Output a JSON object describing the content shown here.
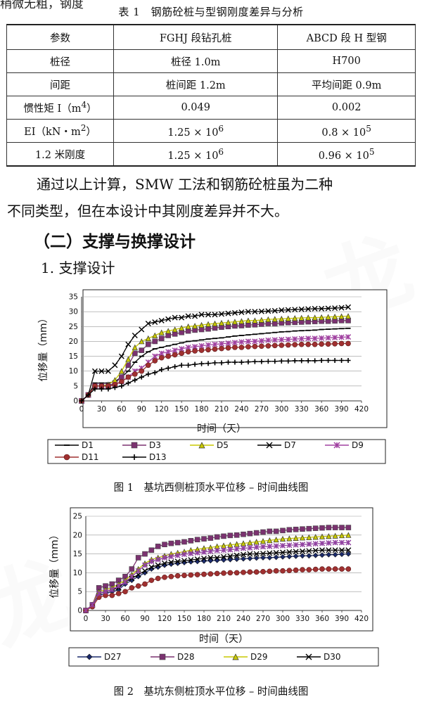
{
  "page": {
    "top_cut_text": "稍微无粗，钢度",
    "table_caption": "表 1　钢筋砼桩与型钢刚度差异与分析",
    "table": {
      "header": [
        "参数",
        "FGHJ 段钻孔桩",
        "ABCD 段 H 型钢"
      ],
      "rows": [
        {
          "label": "桩径",
          "fghj": "桩径 1.0m",
          "abcd": "H700"
        },
        {
          "label": "间距",
          "fghj": "桩间距 1.2m",
          "abcd": "平均间距 0.9m"
        },
        {
          "label": "惯性矩 I（m",
          "label_sup": "4",
          "label_tail": "）",
          "fghj": "0.049",
          "abcd": "0.002"
        },
        {
          "label": "EI（kN・m",
          "label_sup": "2",
          "label_tail": "）",
          "fghj": "1.25 × 10",
          "fghj_sup": "6",
          "abcd": "0.8 × 10",
          "abcd_sup": "5"
        },
        {
          "label": "1.2 米刚度",
          "fghj": "1.25 × 10",
          "fghj_sup": "6",
          "abcd": "0.96 × 10",
          "abcd_sup": "5"
        }
      ]
    },
    "paragraph_line1": "通过以上计算，SMW 工法和钢筋砼桩虽为二种",
    "paragraph_line2": "不同类型，但在本设计中其刚度差异并不大。",
    "heading2": "（二）支撑与换撑设计",
    "heading3": "1. 支撑设计",
    "fig1_caption": "图 1　基坑西侧桩顶水平位移 – 时间曲线图",
    "fig2_caption": "图 2　基坑东侧桩顶水平位移 – 时间曲线图"
  },
  "chart_data": [
    {
      "type": "line",
      "xlabel": "时间（天）",
      "ylabel": "位移量（mm）",
      "xlim": [
        0,
        420
      ],
      "ylim": [
        0,
        35
      ],
      "xticks": [
        0,
        30,
        60,
        90,
        120,
        150,
        180,
        210,
        240,
        270,
        300,
        330,
        360,
        390,
        420
      ],
      "yticks": [
        0,
        5,
        10,
        15,
        20,
        25,
        30,
        35
      ],
      "grid": true,
      "legend_position": "bottom",
      "x": [
        0,
        10,
        20,
        30,
        40,
        50,
        60,
        70,
        80,
        90,
        100,
        110,
        120,
        130,
        140,
        150,
        160,
        170,
        180,
        190,
        200,
        210,
        220,
        230,
        240,
        250,
        260,
        270,
        280,
        290,
        300,
        310,
        320,
        330,
        340,
        350,
        360,
        370,
        380,
        390,
        400
      ],
      "series": [
        {
          "name": "D1",
          "marker": "dash",
          "color": "#000000",
          "values": [
            0,
            2,
            6,
            6,
            6,
            6.5,
            8,
            10,
            13,
            15,
            16.5,
            17.5,
            18,
            18.5,
            19,
            19.5,
            20,
            20.2,
            20.5,
            20.8,
            21,
            21.2,
            21.5,
            21.8,
            22,
            22.2,
            22.4,
            22.6,
            22.8,
            23,
            23.2,
            23.3,
            23.5,
            23.6,
            23.7,
            23.8,
            24,
            24.1,
            24.2,
            24.3,
            24.4
          ]
        },
        {
          "name": "D3",
          "marker": "square",
          "color": "#7b3270",
          "values": [
            0,
            2,
            5,
            5,
            5,
            6,
            8,
            12,
            16,
            17,
            19,
            20,
            21,
            22,
            22.5,
            23,
            23.5,
            23.8,
            24,
            24.2,
            24.5,
            24.8,
            25,
            25.2,
            25.3,
            25.5,
            25.6,
            25.8,
            26,
            26,
            26.2,
            26.3,
            26.4,
            26.5,
            26.6,
            26.7,
            26.8,
            26.8,
            26.9,
            27,
            27
          ]
        },
        {
          "name": "D5",
          "marker": "triangle",
          "color": "#c8c800",
          "values": [
            0,
            2,
            5,
            5,
            5.5,
            7,
            10,
            14,
            18,
            20,
            21,
            22,
            23,
            23.5,
            24,
            24.5,
            25,
            25.2,
            25.5,
            25.8,
            26,
            26.2,
            26.4,
            26.6,
            26.8,
            27,
            27,
            27.2,
            27.4,
            27.5,
            27.6,
            27.7,
            27.8,
            27.9,
            28,
            28,
            28.1,
            28.2,
            28.3,
            28.4,
            28.5
          ]
        },
        {
          "name": "D7",
          "marker": "x",
          "color": "#000000",
          "values": [
            0,
            2,
            10,
            10,
            10,
            12,
            15,
            19,
            22,
            24,
            26,
            26.5,
            27,
            27.5,
            28,
            28,
            28.5,
            28.5,
            29,
            29,
            29,
            29.2,
            29.4,
            29.6,
            29.8,
            30,
            30,
            30.1,
            30.2,
            30.3,
            30.5,
            30.6,
            30.7,
            30.8,
            30.9,
            31,
            31,
            31.1,
            31.2,
            31.3,
            31.5
          ]
        },
        {
          "name": "D9",
          "marker": "star",
          "color": "#a040a0",
          "values": [
            0,
            2,
            5,
            5,
            5,
            5.5,
            6.5,
            8,
            10,
            11,
            13,
            15,
            16,
            16.5,
            17,
            17.5,
            18,
            18.2,
            18.5,
            18.8,
            19,
            19.2,
            19.4,
            19.6,
            19.8,
            20,
            20,
            20.2,
            20.4,
            20.5,
            20.6,
            20.7,
            20.8,
            20.9,
            21,
            21,
            21.1,
            21.2,
            21.3,
            21.4,
            21.5
          ]
        },
        {
          "name": "D11",
          "marker": "circle",
          "color": "#a03030",
          "values": [
            0,
            2,
            5,
            5,
            5,
            5.5,
            6.5,
            8,
            9,
            10,
            12,
            13.5,
            14.5,
            15,
            15.5,
            16,
            16.5,
            16.8,
            17,
            17.2,
            17.4,
            17.6,
            17.8,
            18,
            18,
            18.2,
            18.3,
            18.4,
            18.5,
            18.6,
            18.7,
            18.8,
            18.9,
            19,
            19,
            19,
            19.1,
            19.1,
            19.2,
            19.3,
            19.3
          ]
        },
        {
          "name": "D13",
          "marker": "plus",
          "color": "#000000",
          "values": [
            0,
            2,
            4,
            4,
            4,
            4.5,
            5,
            6,
            7,
            8,
            9,
            9.5,
            10.5,
            11,
            11.5,
            12,
            12,
            12.3,
            12.5,
            12.6,
            12.8,
            12.8,
            13,
            13,
            13,
            13.1,
            13.2,
            13.2,
            13.3,
            13.3,
            13.4,
            13.4,
            13.5,
            13.5,
            13.5,
            13.5,
            13.6,
            13.6,
            13.6,
            13.6,
            13.6
          ]
        }
      ]
    },
    {
      "type": "line",
      "xlabel": "时间（天）",
      "ylabel": "位移量（mm）",
      "xlim": [
        0,
        420
      ],
      "ylim": [
        0,
        25
      ],
      "xticks": [
        0,
        30,
        60,
        90,
        120,
        150,
        180,
        210,
        240,
        270,
        300,
        330,
        360,
        390,
        420
      ],
      "yticks": [
        0,
        5,
        10,
        15,
        20,
        25
      ],
      "grid": true,
      "legend_position": "bottom",
      "x": [
        0,
        10,
        20,
        30,
        40,
        50,
        60,
        70,
        80,
        90,
        100,
        110,
        120,
        130,
        140,
        150,
        160,
        170,
        180,
        190,
        200,
        210,
        220,
        230,
        240,
        250,
        260,
        270,
        280,
        290,
        300,
        310,
        320,
        330,
        340,
        350,
        360,
        370,
        380,
        390,
        400
      ],
      "series": [
        {
          "name": "D27",
          "marker": "diamond",
          "color": "#1a2a6c",
          "values": [
            0,
            1.5,
            4,
            4.5,
            5,
            5.5,
            7,
            8,
            9,
            10,
            11,
            11.5,
            12,
            12.3,
            12.5,
            12.7,
            12.9,
            13,
            13.1,
            13.2,
            13.3,
            13.4,
            13.5,
            13.6,
            13.7,
            13.8,
            13.9,
            14,
            14,
            14.1,
            14.2,
            14.3,
            14.4,
            14.5,
            14.5,
            14.6,
            14.7,
            14.8,
            14.8,
            14.9,
            15
          ]
        },
        {
          "name": "D28",
          "marker": "square",
          "color": "#7b3270",
          "values": [
            0,
            1.5,
            6,
            6.5,
            7,
            8,
            9,
            11,
            14,
            15,
            16,
            17,
            17.5,
            17.8,
            18,
            18.2,
            18.5,
            18.8,
            19,
            19.2,
            19.5,
            19.7,
            19.9,
            20,
            20.2,
            20.4,
            20.6,
            20.8,
            21,
            21,
            21.2,
            21.4,
            21.5,
            21.6,
            21.7,
            21.8,
            21.9,
            22,
            22,
            22,
            22
          ]
        },
        {
          "name": "D29",
          "marker": "triangle",
          "color": "#c8c800",
          "values": [
            0,
            1.5,
            5,
            5.5,
            6,
            7,
            8,
            9.5,
            11,
            12.5,
            13.5,
            14,
            14.5,
            15,
            15.3,
            15.6,
            16,
            16.2,
            16.5,
            16.7,
            17,
            17.2,
            17.4,
            17.6,
            17.8,
            18,
            18.2,
            18.4,
            18.6,
            18.8,
            19,
            19.1,
            19.2,
            19.3,
            19.4,
            19.5,
            19.6,
            19.7,
            19.8,
            19.9,
            20
          ]
        },
        {
          "name": "D30",
          "marker": "x",
          "color": "#000000",
          "values": [
            0,
            1.5,
            4.5,
            5,
            5.5,
            6,
            7.5,
            8.5,
            9.5,
            10.5,
            11.5,
            12,
            12.5,
            12.8,
            13,
            13.2,
            13.4,
            13.6,
            13.8,
            14,
            14,
            14.2,
            14.4,
            14.6,
            14.8,
            15,
            15,
            15.1,
            15.2,
            15.3,
            15.4,
            15.5,
            15.6,
            15.7,
            15.8,
            15.9,
            16,
            16,
            16,
            16,
            16
          ]
        },
        {
          "name": "",
          "marker": "circle",
          "color": "#a03030",
          "values": [
            0,
            1,
            3.5,
            4,
            4,
            4.5,
            5,
            6,
            6.5,
            7,
            8,
            8.5,
            8.8,
            9,
            9.2,
            9.3,
            9.4,
            9.5,
            9.6,
            9.7,
            9.8,
            9.9,
            10,
            10,
            10.1,
            10.2,
            10.2,
            10.3,
            10.4,
            10.5,
            10.5,
            10.6,
            10.7,
            10.8,
            10.8,
            10.9,
            11,
            11,
            11,
            11,
            11
          ]
        },
        {
          "name": "",
          "marker": "star",
          "color": "#9040a0",
          "values": [
            0,
            1.5,
            4.5,
            5,
            5.5,
            6.5,
            7.5,
            9,
            10.5,
            12,
            13,
            13.5,
            14,
            14.3,
            14.6,
            14.9,
            15.1,
            15.3,
            15.5,
            15.7,
            15.9,
            16,
            16.1,
            16.3,
            16.5,
            16.6,
            16.8,
            16.9,
            17,
            17.1,
            17.2,
            17.3,
            17.4,
            17.5,
            17.6,
            17.7,
            17.8,
            17.9,
            18,
            18,
            18
          ]
        }
      ]
    }
  ]
}
